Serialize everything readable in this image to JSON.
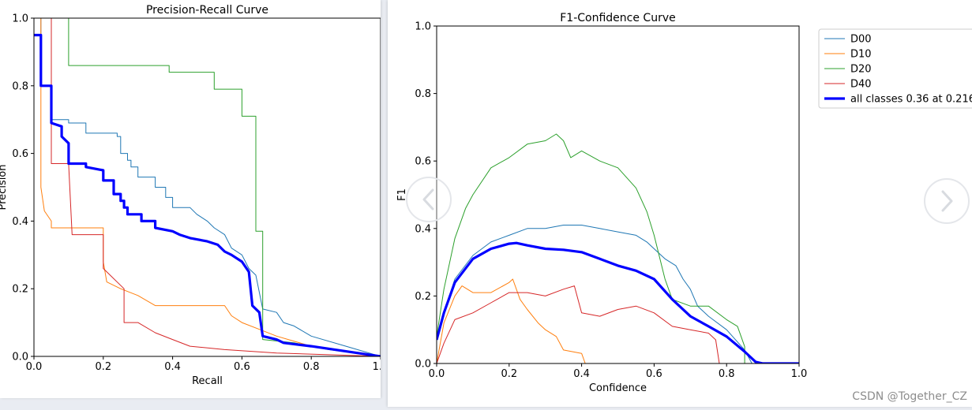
{
  "colors": {
    "D00": "#1f77b4",
    "D10": "#ff7f0e",
    "D20": "#2ca02c",
    "D40": "#d62728",
    "all": "#0000ff"
  },
  "watermark": "CSDN @Together_CZ",
  "chart_data": [
    {
      "type": "line",
      "title": "Precision-Recall Curve",
      "xlabel": "Recall",
      "ylabel": "Precision",
      "xlim": [
        0,
        1
      ],
      "ylim": [
        0,
        1
      ],
      "xticks": [
        "0.0",
        "0.2",
        "0.4",
        "0.6",
        "0.8",
        "1.0"
      ],
      "yticks": [
        "0.0",
        "0.2",
        "0.4",
        "0.6",
        "0.8",
        "1.0"
      ],
      "series": [
        {
          "name": "D00",
          "key": "D00",
          "width": 1,
          "points": [
            [
              0,
              1.0
            ],
            [
              0.02,
              1.0
            ],
            [
              0.02,
              0.8
            ],
            [
              0.05,
              0.8
            ],
            [
              0.05,
              0.7
            ],
            [
              0.1,
              0.7
            ],
            [
              0.1,
              0.69
            ],
            [
              0.15,
              0.69
            ],
            [
              0.15,
              0.66
            ],
            [
              0.24,
              0.66
            ],
            [
              0.24,
              0.65
            ],
            [
              0.25,
              0.65
            ],
            [
              0.25,
              0.6
            ],
            [
              0.27,
              0.6
            ],
            [
              0.27,
              0.58
            ],
            [
              0.28,
              0.58
            ],
            [
              0.28,
              0.56
            ],
            [
              0.3,
              0.56
            ],
            [
              0.3,
              0.53
            ],
            [
              0.35,
              0.53
            ],
            [
              0.35,
              0.5
            ],
            [
              0.38,
              0.5
            ],
            [
              0.38,
              0.47
            ],
            [
              0.4,
              0.47
            ],
            [
              0.4,
              0.44
            ],
            [
              0.45,
              0.44
            ],
            [
              0.47,
              0.42
            ],
            [
              0.5,
              0.4
            ],
            [
              0.52,
              0.38
            ],
            [
              0.55,
              0.36
            ],
            [
              0.57,
              0.32
            ],
            [
              0.6,
              0.3
            ],
            [
              0.62,
              0.26
            ],
            [
              0.64,
              0.24
            ],
            [
              0.66,
              0.14
            ],
            [
              0.7,
              0.13
            ],
            [
              0.72,
              0.1
            ],
            [
              0.75,
              0.09
            ],
            [
              0.8,
              0.06
            ],
            [
              0.9,
              0.03
            ],
            [
              1.0,
              0.0
            ]
          ]
        },
        {
          "name": "D10",
          "key": "D10",
          "width": 1,
          "points": [
            [
              0.02,
              1.0
            ],
            [
              0.02,
              0.5
            ],
            [
              0.03,
              0.43
            ],
            [
              0.05,
              0.4
            ],
            [
              0.05,
              0.38
            ],
            [
              0.2,
              0.38
            ],
            [
              0.2,
              0.28
            ],
            [
              0.21,
              0.22
            ],
            [
              0.25,
              0.2
            ],
            [
              0.3,
              0.18
            ],
            [
              0.35,
              0.15
            ],
            [
              0.55,
              0.15
            ],
            [
              0.57,
              0.12
            ],
            [
              0.6,
              0.1
            ],
            [
              0.65,
              0.08
            ],
            [
              0.7,
              0.06
            ],
            [
              0.8,
              0.03
            ],
            [
              1.0,
              0.0
            ]
          ]
        },
        {
          "name": "D20",
          "key": "D20",
          "width": 1,
          "points": [
            [
              0.1,
              1.0
            ],
            [
              0.1,
              0.86
            ],
            [
              0.39,
              0.86
            ],
            [
              0.39,
              0.84
            ],
            [
              0.52,
              0.84
            ],
            [
              0.52,
              0.79
            ],
            [
              0.6,
              0.79
            ],
            [
              0.6,
              0.71
            ],
            [
              0.64,
              0.71
            ],
            [
              0.64,
              0.37
            ],
            [
              0.66,
              0.37
            ],
            [
              0.66,
              0.05
            ],
            [
              0.75,
              0.04
            ],
            [
              0.85,
              0.02
            ],
            [
              1.0,
              0.0
            ]
          ]
        },
        {
          "name": "D40",
          "key": "D40",
          "width": 1,
          "points": [
            [
              0.05,
              1.0
            ],
            [
              0.05,
              0.57
            ],
            [
              0.1,
              0.57
            ],
            [
              0.11,
              0.36
            ],
            [
              0.2,
              0.36
            ],
            [
              0.2,
              0.26
            ],
            [
              0.26,
              0.2
            ],
            [
              0.26,
              0.1
            ],
            [
              0.3,
              0.1
            ],
            [
              0.35,
              0.07
            ],
            [
              0.4,
              0.05
            ],
            [
              0.45,
              0.03
            ],
            [
              0.55,
              0.02
            ],
            [
              0.7,
              0.01
            ],
            [
              1.0,
              0.0
            ]
          ]
        },
        {
          "name": "all classes",
          "key": "all",
          "width": 3.2,
          "points": [
            [
              0,
              0.95
            ],
            [
              0.02,
              0.95
            ],
            [
              0.02,
              0.8
            ],
            [
              0.05,
              0.8
            ],
            [
              0.05,
              0.69
            ],
            [
              0.08,
              0.68
            ],
            [
              0.08,
              0.65
            ],
            [
              0.1,
              0.63
            ],
            [
              0.1,
              0.57
            ],
            [
              0.15,
              0.57
            ],
            [
              0.15,
              0.56
            ],
            [
              0.2,
              0.55
            ],
            [
              0.2,
              0.52
            ],
            [
              0.22,
              0.52
            ],
            [
              0.2,
              0.52
            ],
            [
              0.23,
              0.52
            ],
            [
              0.23,
              0.48
            ],
            [
              0.25,
              0.48
            ],
            [
              0.25,
              0.46
            ],
            [
              0.26,
              0.46
            ],
            [
              0.26,
              0.44
            ],
            [
              0.27,
              0.44
            ],
            [
              0.27,
              0.42
            ],
            [
              0.31,
              0.42
            ],
            [
              0.31,
              0.4
            ],
            [
              0.35,
              0.4
            ],
            [
              0.35,
              0.38
            ],
            [
              0.4,
              0.37
            ],
            [
              0.42,
              0.36
            ],
            [
              0.45,
              0.35
            ],
            [
              0.5,
              0.34
            ],
            [
              0.53,
              0.33
            ],
            [
              0.55,
              0.31
            ],
            [
              0.57,
              0.3
            ],
            [
              0.6,
              0.28
            ],
            [
              0.62,
              0.25
            ],
            [
              0.63,
              0.15
            ],
            [
              0.65,
              0.13
            ],
            [
              0.66,
              0.06
            ],
            [
              0.7,
              0.05
            ],
            [
              0.72,
              0.04
            ],
            [
              0.8,
              0.03
            ],
            [
              0.9,
              0.015
            ],
            [
              1.0,
              0.0
            ]
          ]
        }
      ]
    },
    {
      "type": "line",
      "title": "F1-Confidence Curve",
      "xlabel": "Confidence",
      "ylabel": "F1",
      "xlim": [
        0,
        1
      ],
      "ylim": [
        0,
        1
      ],
      "xticks": [
        "0.0",
        "0.2",
        "0.4",
        "0.6",
        "0.8",
        "1.0"
      ],
      "yticks": [
        "0.0",
        "0.2",
        "0.4",
        "0.6",
        "0.8",
        "1.0"
      ],
      "legend_position": "outside-top-right",
      "series": [
        {
          "name": "D00",
          "key": "D00",
          "width": 1,
          "points": [
            [
              0,
              0.08
            ],
            [
              0.02,
              0.15
            ],
            [
              0.05,
              0.25
            ],
            [
              0.1,
              0.32
            ],
            [
              0.15,
              0.36
            ],
            [
              0.2,
              0.38
            ],
            [
              0.25,
              0.4
            ],
            [
              0.3,
              0.4
            ],
            [
              0.35,
              0.41
            ],
            [
              0.4,
              0.41
            ],
            [
              0.45,
              0.4
            ],
            [
              0.5,
              0.39
            ],
            [
              0.55,
              0.38
            ],
            [
              0.58,
              0.36
            ],
            [
              0.6,
              0.34
            ],
            [
              0.63,
              0.31
            ],
            [
              0.66,
              0.29
            ],
            [
              0.68,
              0.25
            ],
            [
              0.7,
              0.22
            ],
            [
              0.72,
              0.17
            ],
            [
              0.75,
              0.14
            ],
            [
              0.8,
              0.1
            ],
            [
              0.85,
              0.04
            ],
            [
              0.87,
              0.0
            ],
            [
              1.0,
              0.0
            ]
          ]
        },
        {
          "name": "D10",
          "key": "D10",
          "width": 1,
          "points": [
            [
              0,
              0.0
            ],
            [
              0.02,
              0.12
            ],
            [
              0.05,
              0.2
            ],
            [
              0.07,
              0.23
            ],
            [
              0.1,
              0.21
            ],
            [
              0.15,
              0.21
            ],
            [
              0.2,
              0.24
            ],
            [
              0.21,
              0.25
            ],
            [
              0.23,
              0.19
            ],
            [
              0.25,
              0.16
            ],
            [
              0.28,
              0.12
            ],
            [
              0.3,
              0.1
            ],
            [
              0.33,
              0.08
            ],
            [
              0.35,
              0.04
            ],
            [
              0.4,
              0.03
            ],
            [
              0.41,
              0.0
            ]
          ]
        },
        {
          "name": "D20",
          "key": "D20",
          "width": 1,
          "points": [
            [
              0,
              0.08
            ],
            [
              0.02,
              0.22
            ],
            [
              0.05,
              0.37
            ],
            [
              0.08,
              0.46
            ],
            [
              0.1,
              0.5
            ],
            [
              0.15,
              0.58
            ],
            [
              0.2,
              0.61
            ],
            [
              0.25,
              0.65
            ],
            [
              0.3,
              0.66
            ],
            [
              0.33,
              0.68
            ],
            [
              0.35,
              0.66
            ],
            [
              0.37,
              0.61
            ],
            [
              0.4,
              0.63
            ],
            [
              0.45,
              0.6
            ],
            [
              0.5,
              0.58
            ],
            [
              0.55,
              0.52
            ],
            [
              0.58,
              0.45
            ],
            [
              0.6,
              0.38
            ],
            [
              0.63,
              0.25
            ],
            [
              0.65,
              0.19
            ],
            [
              0.7,
              0.17
            ],
            [
              0.75,
              0.17
            ],
            [
              0.8,
              0.13
            ],
            [
              0.83,
              0.11
            ],
            [
              0.85,
              0.05
            ],
            [
              0.85,
              0.0
            ],
            [
              1.0,
              0.0
            ]
          ]
        },
        {
          "name": "D40",
          "key": "D40",
          "width": 1,
          "points": [
            [
              0,
              0.0
            ],
            [
              0.02,
              0.06
            ],
            [
              0.05,
              0.13
            ],
            [
              0.1,
              0.15
            ],
            [
              0.15,
              0.18
            ],
            [
              0.2,
              0.21
            ],
            [
              0.25,
              0.21
            ],
            [
              0.3,
              0.2
            ],
            [
              0.35,
              0.22
            ],
            [
              0.38,
              0.23
            ],
            [
              0.4,
              0.15
            ],
            [
              0.45,
              0.14
            ],
            [
              0.5,
              0.16
            ],
            [
              0.55,
              0.17
            ],
            [
              0.6,
              0.15
            ],
            [
              0.65,
              0.11
            ],
            [
              0.7,
              0.1
            ],
            [
              0.75,
              0.09
            ],
            [
              0.77,
              0.07
            ],
            [
              0.78,
              0.0
            ]
          ]
        },
        {
          "name": "all classes 0.36 at 0.216",
          "key": "all",
          "width": 3.2,
          "points": [
            [
              0,
              0.07
            ],
            [
              0.02,
              0.15
            ],
            [
              0.05,
              0.24
            ],
            [
              0.1,
              0.31
            ],
            [
              0.15,
              0.34
            ],
            [
              0.2,
              0.355
            ],
            [
              0.22,
              0.357
            ],
            [
              0.25,
              0.35
            ],
            [
              0.3,
              0.34
            ],
            [
              0.35,
              0.337
            ],
            [
              0.4,
              0.33
            ],
            [
              0.45,
              0.31
            ],
            [
              0.5,
              0.29
            ],
            [
              0.55,
              0.275
            ],
            [
              0.6,
              0.25
            ],
            [
              0.65,
              0.19
            ],
            [
              0.7,
              0.14
            ],
            [
              0.75,
              0.11
            ],
            [
              0.8,
              0.08
            ],
            [
              0.85,
              0.035
            ],
            [
              0.88,
              0.005
            ],
            [
              0.9,
              0.0
            ],
            [
              1.0,
              0.0
            ]
          ]
        }
      ]
    }
  ]
}
